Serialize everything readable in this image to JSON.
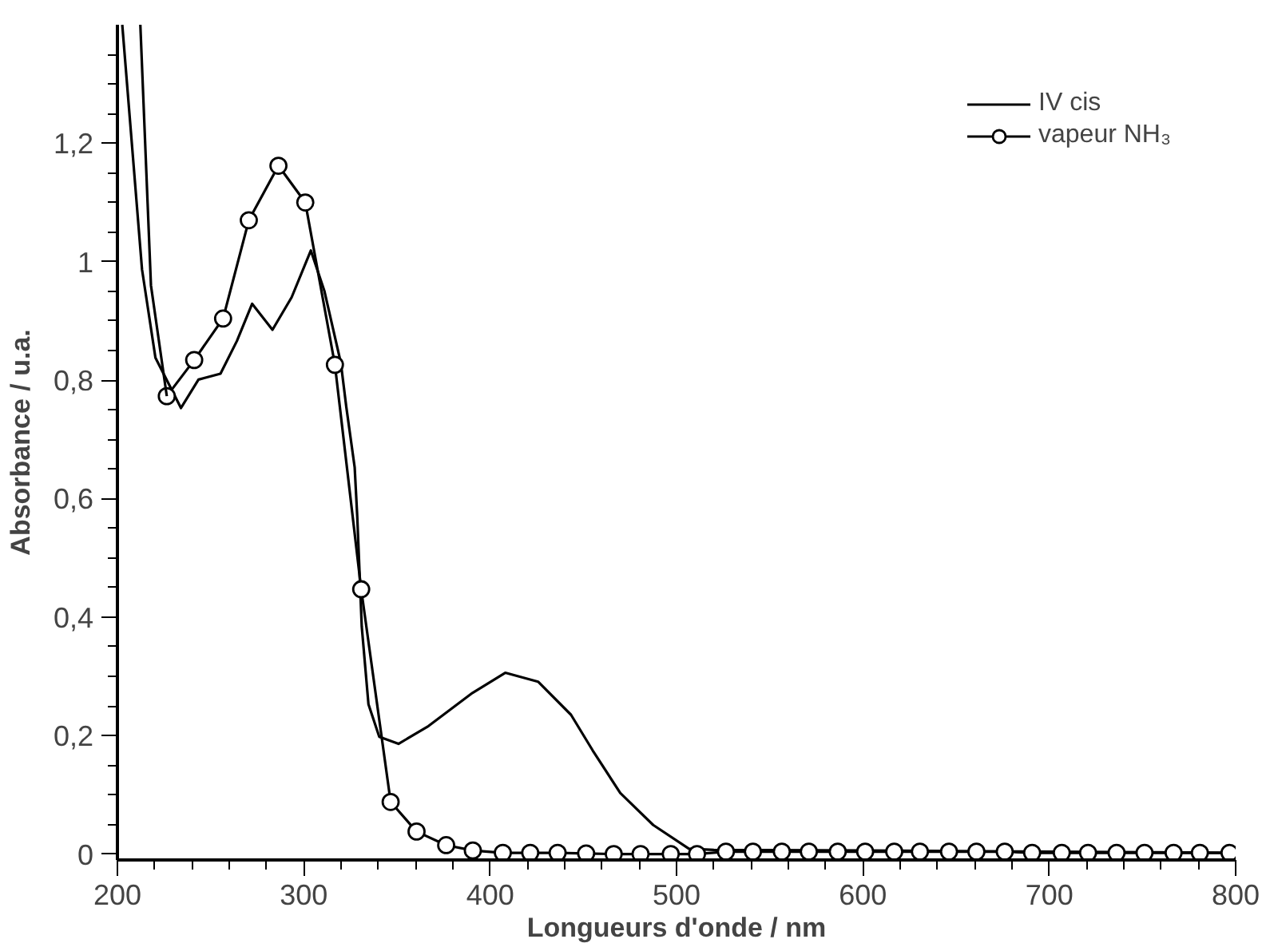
{
  "chart_data": {
    "type": "line",
    "xlabel": "Longueurs d'onde / nm",
    "ylabel": "Absorbance / u.a.",
    "xlim": [
      200,
      800
    ],
    "ylim": [
      -0.01,
      1.4
    ],
    "xticks": [
      200,
      300,
      400,
      500,
      600,
      700,
      800,
      {
        "value": 220,
        "label": null
      },
      {
        "value": 240,
        "label": null
      },
      {
        "value": 260,
        "label": null
      },
      {
        "value": 280,
        "label": null
      },
      {
        "value": 320,
        "label": null
      },
      {
        "value": 340,
        "label": null
      },
      {
        "value": 360,
        "label": null
      },
      {
        "value": 380,
        "label": null
      },
      {
        "value": 420,
        "label": null
      },
      {
        "value": 440,
        "label": null
      },
      {
        "value": 460,
        "label": null
      },
      {
        "value": 480,
        "label": null
      },
      {
        "value": 520,
        "label": null
      },
      {
        "value": 540,
        "label": null
      },
      {
        "value": 560,
        "label": null
      },
      {
        "value": 580,
        "label": null
      },
      {
        "value": 620,
        "label": null
      },
      {
        "value": 640,
        "label": null
      },
      {
        "value": 660,
        "label": null
      },
      {
        "value": 680,
        "label": null
      },
      {
        "value": 720,
        "label": null
      },
      {
        "value": 740,
        "label": null
      },
      {
        "value": 760,
        "label": null
      },
      {
        "value": 780,
        "label": null
      }
    ],
    "yticks": [
      0,
      {
        "value": 0.2,
        "label": "0,2"
      },
      {
        "value": 0.4,
        "label": "0,4"
      },
      {
        "value": 0.6,
        "label": "0,6"
      },
      {
        "value": 0.8,
        "label": "0,8"
      },
      1,
      {
        "value": 1.2,
        "label": "1,2"
      },
      {
        "value": 0.05,
        "label": null
      },
      {
        "value": 0.1,
        "label": null
      },
      {
        "value": 0.15,
        "label": null
      },
      {
        "value": 0.25,
        "label": null
      },
      {
        "value": 0.3,
        "label": null
      },
      {
        "value": 0.35,
        "label": null
      },
      {
        "value": 0.45,
        "label": null
      },
      {
        "value": 0.5,
        "label": null
      },
      {
        "value": 0.55,
        "label": null
      },
      {
        "value": 0.65,
        "label": null
      },
      {
        "value": 0.7,
        "label": null
      },
      {
        "value": 0.75,
        "label": null
      },
      {
        "value": 0.85,
        "label": null
      },
      {
        "value": 0.9,
        "label": null
      },
      {
        "value": 0.95,
        "label": null
      },
      {
        "value": 1.05,
        "label": null
      },
      {
        "value": 1.1,
        "label": null
      },
      {
        "value": 1.15,
        "label": null
      },
      {
        "value": 1.25,
        "label": null
      },
      {
        "value": 1.3,
        "label": null
      },
      {
        "value": 1.35,
        "label": null
      }
    ],
    "grid": false,
    "legend": "top right",
    "line_style": "solid",
    "series": [
      {
        "name": "IV cis",
        "color": "#000000",
        "marker": "none",
        "x": [
          202.6,
          213.2,
          220.4,
          234.1,
          243.5,
          255.3,
          264.1,
          272.3,
          283.2,
          293.5,
          303.8,
          311.1,
          319.9,
          322.8,
          327.3,
          328.7,
          331.1,
          334.7,
          340.5,
          350.8,
          366.9,
          390.5,
          408.1,
          425.7,
          443.4,
          455,
          469.8,
          487.5,
          506.6,
          520,
          600,
          700,
          800
        ],
        "values": [
          1.4,
          0.987,
          0.838,
          0.753,
          0.801,
          0.811,
          0.866,
          0.929,
          0.885,
          0.94,
          1.019,
          0.95,
          0.829,
          0.755,
          0.653,
          0.569,
          0.384,
          0.253,
          0.198,
          0.186,
          0.216,
          0.272,
          0.306,
          0.291,
          0.235,
          0.175,
          0.103,
          0.049,
          0.009,
          0.007,
          0.006,
          0.004,
          0.002
        ]
      },
      {
        "name": "vapeur NH₃",
        "color": "#000000",
        "marker": "circle",
        "x": [
          226.5,
          241.2,
          256.7,
          270.5,
          286.4,
          300.8,
          316.7,
          330.8,
          346.6,
          360.5,
          376.4,
          390.7,
          406.8,
          421.5,
          436.2,
          451.5,
          466.3,
          480.7,
          496.9,
          511,
          526.5,
          541,
          556.5,
          571,
          586.5,
          601.2,
          616.8,
          630.6,
          646.2,
          660.9,
          676.1,
          690.8,
          706.7,
          720.8,
          736.1,
          751.1,
          766.7,
          780.8,
          796.7
        ],
        "values": [
          0.773,
          0.834,
          0.904,
          1.07,
          1.162,
          1.1,
          0.826,
          0.447,
          0.088,
          0.038,
          0.015,
          0.006,
          0.002,
          0.002,
          0.002,
          0.001,
          0,
          0,
          0,
          0,
          0.004,
          0.004,
          0.004,
          0.004,
          0.004,
          0.004,
          0.004,
          0.004,
          0.004,
          0.004,
          0.004,
          0.002,
          0.002,
          0.002,
          0.002,
          0.002,
          0.002,
          0.002,
          0.002
        ]
      },
      {
        "color": "#000000",
        "marker": "none",
        "x": [
          212.3,
          218,
          226.5
        ],
        "values": [
          1.4,
          0.96,
          0.773
        ]
      }
    ]
  }
}
